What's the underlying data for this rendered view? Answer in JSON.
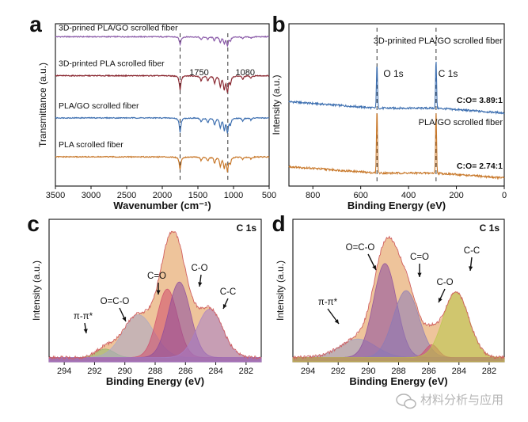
{
  "watermark": "材料分析与应用",
  "chart_data": [
    {
      "panel": "a",
      "type": "line",
      "xlabel": "Wavenumber (cm⁻¹)",
      "ylabel": "Transmittance (a.u.)",
      "xlim": [
        3500,
        500
      ],
      "x_reversed": true,
      "xticks": [
        3500,
        3000,
        2500,
        2000,
        1500,
        1000,
        500
      ],
      "grid": false,
      "ref_lines": [
        1750,
        1080
      ],
      "annotations": [
        "1750",
        "1080"
      ],
      "series": [
        {
          "name": "3D-prined PLA/GO scrolled fiber",
          "color": "#8a5aa8",
          "level": 0.92,
          "peaks": [
            [
              1750,
              -0.3
            ],
            [
              1455,
              -0.12
            ],
            [
              1360,
              -0.1
            ],
            [
              1270,
              -0.14
            ],
            [
              1185,
              -0.2
            ],
            [
              1130,
              -0.24
            ],
            [
              1085,
              -0.32
            ],
            [
              1045,
              -0.14
            ],
            [
              870,
              -0.08
            ],
            [
              755,
              -0.06
            ]
          ]
        },
        {
          "name": "3D-printed PLA scrolled fiber",
          "color": "#8b2a33",
          "level": 0.68,
          "peaks": [
            [
              1750,
              -0.55
            ],
            [
              1455,
              -0.2
            ],
            [
              1360,
              -0.2
            ],
            [
              1265,
              -0.28
            ],
            [
              1185,
              -0.4
            ],
            [
              1130,
              -0.5
            ],
            [
              1085,
              -0.6
            ],
            [
              1045,
              -0.28
            ],
            [
              870,
              -0.14
            ],
            [
              755,
              -0.1
            ]
          ]
        },
        {
          "name": "PLA/GO scrolled fiber",
          "color": "#3d6fb0",
          "level": 0.42,
          "peaks": [
            [
              1750,
              -0.55
            ],
            [
              1455,
              -0.16
            ],
            [
              1360,
              -0.18
            ],
            [
              1265,
              -0.26
            ],
            [
              1185,
              -0.36
            ],
            [
              1130,
              -0.44
            ],
            [
              1085,
              -0.55
            ],
            [
              1045,
              -0.24
            ],
            [
              870,
              -0.12
            ],
            [
              755,
              -0.08
            ]
          ]
        },
        {
          "name": "PLA scrolled fiber",
          "color": "#c8782a",
          "level": 0.18,
          "peaks": [
            [
              1750,
              -0.5
            ],
            [
              1455,
              -0.14
            ],
            [
              1360,
              -0.16
            ],
            [
              1265,
              -0.24
            ],
            [
              1185,
              -0.34
            ],
            [
              1130,
              -0.4
            ],
            [
              1085,
              -0.52
            ],
            [
              1045,
              -0.22
            ],
            [
              870,
              -0.1
            ],
            [
              755,
              -0.08
            ]
          ]
        }
      ]
    },
    {
      "panel": "b",
      "type": "line",
      "xlabel": "Binding Energy (eV)",
      "ylabel": "Intensity (a.u.)",
      "xlim": [
        900,
        0
      ],
      "x_reversed": true,
      "xticks": [
        800,
        600,
        400,
        200,
        0
      ],
      "grid": false,
      "ref_lines": [
        532,
        285
      ],
      "annotations": [
        "O 1s",
        "C 1s",
        "C:O= 3.89:1",
        "C:O= 2.74:1"
      ],
      "series": [
        {
          "name": "3D-prinited PLA/GO scrolled fiber",
          "color": "#3d6fb0",
          "baseline": 0.48,
          "peaks": [
            [
              532,
              0.28
            ],
            [
              285,
              0.3
            ]
          ]
        },
        {
          "name": "PLA/GO scrolled fiber",
          "color": "#c8782a",
          "baseline": 0.08,
          "peaks": [
            [
              532,
              0.4
            ],
            [
              285,
              0.38
            ]
          ]
        }
      ]
    },
    {
      "panel": "c",
      "type": "area",
      "title": "C 1s",
      "xlabel": "Binding Energy (eV)",
      "ylabel": "Intensity (a.u.)",
      "xlim": [
        295,
        281
      ],
      "x_reversed": true,
      "xticks": [
        294,
        292,
        290,
        288,
        286,
        284,
        282
      ],
      "grid": false,
      "series": [
        {
          "name": "π-π*",
          "center": 291.3,
          "height": 0.06,
          "fwhm": 1.4,
          "color": "#8fb86a"
        },
        {
          "name": "O=C-O",
          "center": 289.1,
          "height": 0.3,
          "fwhm": 2.4,
          "color": "#a8a8c8"
        },
        {
          "name": "C=O",
          "center": 287.2,
          "height": 0.48,
          "fwhm": 1.6,
          "color": "#d04a6a"
        },
        {
          "name": "C-O",
          "center": 286.4,
          "height": 0.53,
          "fwhm": 1.7,
          "color": "#8a4a9e"
        },
        {
          "name": "C-C",
          "center": 284.4,
          "height": 0.34,
          "fwhm": 2.0,
          "color": "#a880c8"
        }
      ],
      "envelope_color": "#e8b07a"
    },
    {
      "panel": "d",
      "type": "area",
      "title": "C 1s",
      "xlabel": "Binding Energy (eV)",
      "ylabel": "Intensity (a.u.)",
      "xlim": [
        295,
        281
      ],
      "x_reversed": true,
      "xticks": [
        294,
        292,
        290,
        288,
        286,
        284,
        282
      ],
      "grid": false,
      "series": [
        {
          "name": "π-π*",
          "center": 290.7,
          "height": 0.13,
          "fwhm": 2.8,
          "color": "#9aa0c8"
        },
        {
          "name": "O=C-O",
          "center": 288.9,
          "height": 0.66,
          "fwhm": 1.8,
          "color": "#8a4a9e"
        },
        {
          "name": "C=O",
          "center": 287.5,
          "height": 0.47,
          "fwhm": 2.0,
          "color": "#8a7ab8"
        },
        {
          "name": "C-O",
          "center": 285.8,
          "height": 0.09,
          "fwhm": 1.0,
          "color": "#d04a6a"
        },
        {
          "name": "C-C",
          "center": 284.2,
          "height": 0.46,
          "fwhm": 2.0,
          "color": "#b8c848"
        }
      ],
      "envelope_color": "#e8b07a"
    }
  ]
}
